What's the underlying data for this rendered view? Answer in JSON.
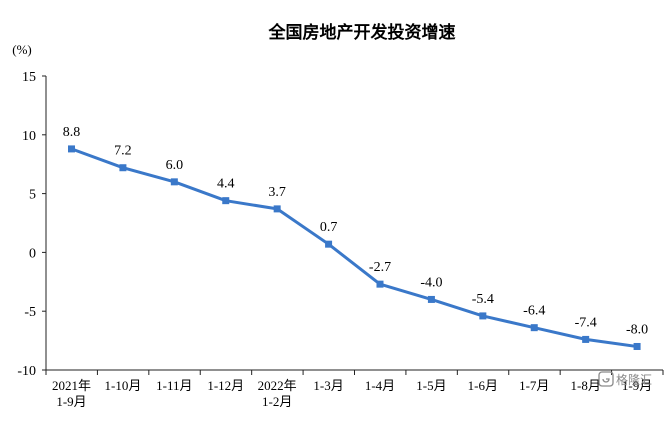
{
  "chart_data": {
    "type": "line",
    "title": "全国房地产开发投资增速",
    "ylabel": "(%)",
    "categories": [
      [
        "2021年",
        "1-9月"
      ],
      [
        "1-10月"
      ],
      [
        "1-11月"
      ],
      [
        "1-12月"
      ],
      [
        "2022年",
        "1-2月"
      ],
      [
        "1-3月"
      ],
      [
        "1-4月"
      ],
      [
        "1-5月"
      ],
      [
        "1-6月"
      ],
      [
        "1-7月"
      ],
      [
        "1-8月"
      ],
      [
        "1-9月"
      ]
    ],
    "series": [
      {
        "values": [
          8.8,
          7.2,
          6.0,
          4.4,
          3.7,
          0.7,
          -2.7,
          -4.0,
          -5.4,
          -6.4,
          -7.4,
          -8.0
        ],
        "labels": [
          "8.8",
          "7.2",
          "6.0",
          "4.4",
          "3.7",
          "0.7",
          "-2.7",
          "-4.0",
          "-5.4",
          "-6.4",
          "-7.4",
          "-8.0"
        ]
      }
    ],
    "yticks": [
      15,
      10,
      5,
      0,
      -5,
      -10
    ],
    "ylim": [
      -10,
      15
    ],
    "grid": false,
    "colors": {
      "line": "#3a78c9",
      "axis": "#222222"
    }
  },
  "watermark": {
    "text": "格隆汇",
    "icon": "watermark-logo-icon"
  }
}
